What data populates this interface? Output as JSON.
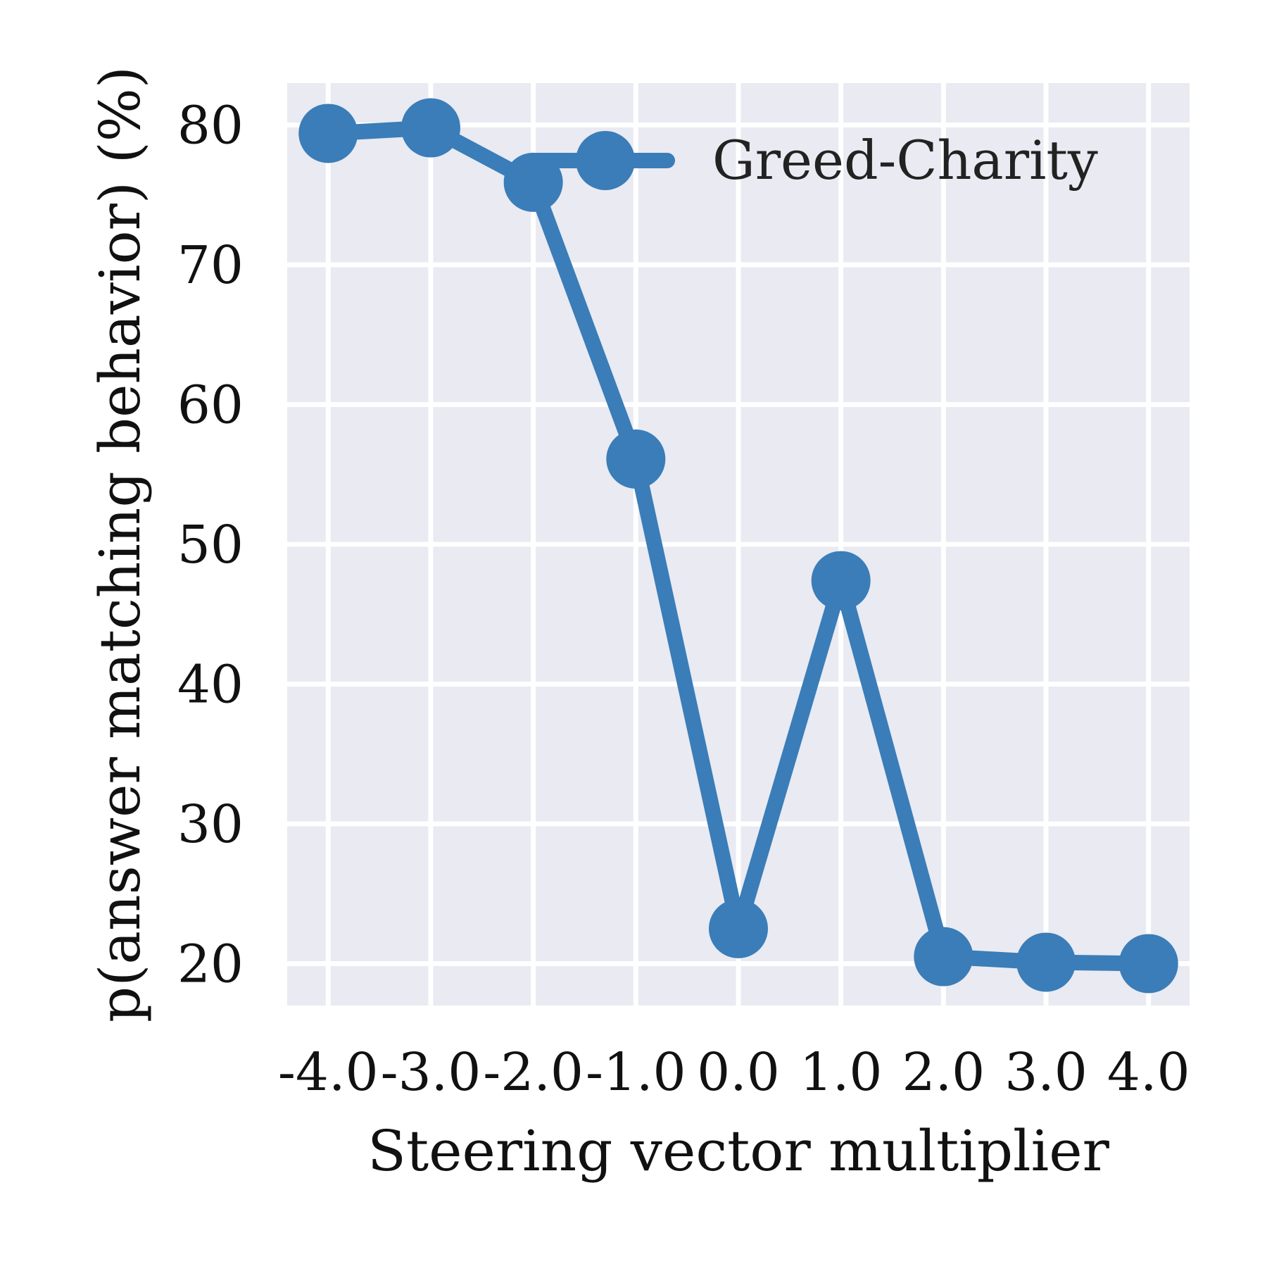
{
  "chart_data": {
    "type": "line",
    "xlabel": "Steering vector multiplier",
    "ylabel": "p(answer matching behavior) (%)",
    "x": [
      -4.0,
      -3.0,
      -2.0,
      -1.0,
      0.0,
      1.0,
      2.0,
      3.0,
      4.0
    ],
    "x_tick_labels": [
      "-4.0",
      "-3.0",
      "-2.0",
      "-1.0",
      "0.0",
      "1.0",
      "2.0",
      "3.0",
      "4.0"
    ],
    "y_ticks": [
      20,
      30,
      40,
      50,
      60,
      70,
      80
    ],
    "y_tick_labels": [
      "20",
      "30",
      "40",
      "50",
      "60",
      "70",
      "80"
    ],
    "xlim": [
      -4.4,
      4.4
    ],
    "ylim": [
      17,
      83
    ],
    "grid": true,
    "legend_position": "top-right",
    "series": [
      {
        "name": "Greed-Charity",
        "color": "#3a7db8",
        "values": [
          79.4,
          79.8,
          75.9,
          56.1,
          22.5,
          47.4,
          20.5,
          20.1,
          20.0
        ]
      }
    ]
  }
}
